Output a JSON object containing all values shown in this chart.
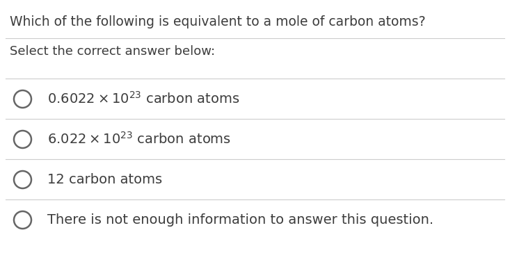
{
  "title": "Which of the following is equivalent to a mole of carbon atoms?",
  "subtitle": "Select the correct answer below:",
  "options_plain": [
    "12 carbon atoms",
    "There is not enough information to answer this question."
  ],
  "opt1_parts": [
    "0.6022 × 10",
    "23",
    " carbon atoms"
  ],
  "opt2_parts": [
    "6.022 × 10",
    "23",
    " carbon atoms"
  ],
  "background_color": "#ffffff",
  "text_color": "#3d3d3d",
  "line_color": "#cccccc",
  "title_fontsize": 13.5,
  "subtitle_fontsize": 13,
  "option_fontsize": 14,
  "fig_width": 7.33,
  "fig_height": 4.0
}
